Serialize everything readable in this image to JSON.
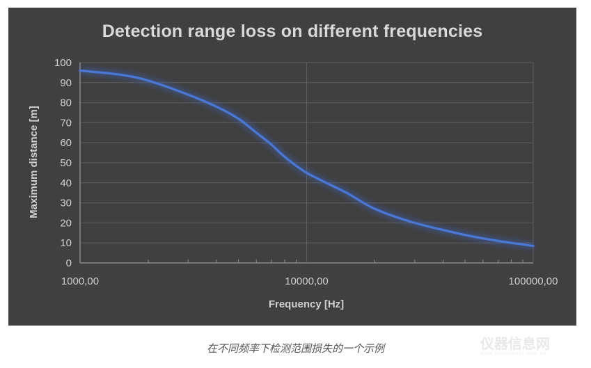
{
  "chart_data": {
    "type": "line",
    "title": "Detection range loss on different frequencies",
    "xlabel": "Frequency [Hz]",
    "ylabel": "Maximum distance [m]",
    "xscale": "log",
    "xlim": [
      1000,
      100000
    ],
    "ylim": [
      0,
      100
    ],
    "grid": true,
    "legend": null,
    "x_tick_labels": [
      "1000,00",
      "10000,00",
      "100000,00"
    ],
    "y_tick_labels": [
      "0",
      "10",
      "20",
      "30",
      "40",
      "50",
      "60",
      "70",
      "80",
      "90",
      "100"
    ],
    "series": [
      {
        "name": "Maximum distance",
        "color": "#4a78d6",
        "x": [
          1000,
          1500,
          2000,
          3000,
          4000,
          5000,
          6000,
          7000,
          8000,
          10000,
          15000,
          20000,
          30000,
          50000,
          70000,
          100000
        ],
        "values": [
          96,
          94,
          91,
          84,
          78,
          72,
          65,
          59,
          53,
          45,
          35,
          27,
          20,
          14,
          11,
          8.5
        ]
      }
    ]
  },
  "caption": "在不同频率下检测范围损失的一个示例",
  "watermark": {
    "text": "仪器信息网",
    "sub": "www.instrument.com.cn"
  },
  "colors": {
    "background": "#404040",
    "grid": "#5e5e5e",
    "text": "#d0d0d0",
    "line": "#4a78d6"
  }
}
